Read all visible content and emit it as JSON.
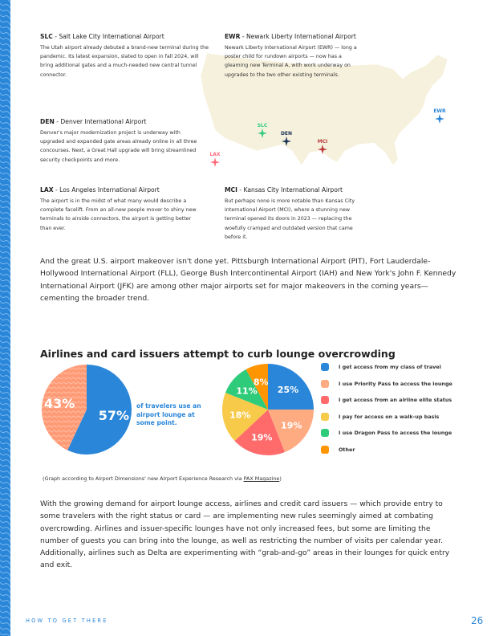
{
  "airports": [
    {
      "code": "SLC",
      "name": " - Salt Lake City International Airport",
      "text": "The Utah airport already debuted a brand-new terminal during the pandemic. Its latest expansion, slated to open in fall 2024, will bring additional gates and a much-needed new central tunnel connector."
    },
    {
      "code": "EWR",
      "name": " - Newark Liberty International Airport",
      "text": "Newark Liberty International Airport (EWR) — long a poster child for rundown airports — now has a gleaming new Terminal A, with work underway on upgrades to the two other existing terminals."
    },
    {
      "code": "DEN",
      "name": " - Denver International Airport",
      "text": "Denver's major modernization project is underway with upgraded and expanded gate areas already online in all three concourses. Next, a Great Hall upgrade will bring streamlined security checkpoints and more."
    },
    {
      "code": "LAX",
      "name": " - Los Angeles International Airport",
      "text": "The airport is in the midst of what many would describe a complete facelift. From an all-new people mover to shiny new terminals to airside connectors, the airport is getting better than ever."
    },
    {
      "code": "MCI",
      "name": " - Kansas City International Airport",
      "text": "But perhaps none is more notable than Kansas City International Airport (MCI), where a stunning new terminal opened its doors in 2023 — replacing the woefully cramped and outdated version that came before it."
    }
  ],
  "map_markers": [
    {
      "label": "SLC",
      "color": "#2ecc7a"
    },
    {
      "label": "DEN",
      "color": "#1d3557"
    },
    {
      "label": "MCI",
      "color": "#b83a3a"
    },
    {
      "label": "LAX",
      "color": "#ff6b7a"
    },
    {
      "label": "EWR",
      "color": "#2a86d8"
    }
  ],
  "intro": "And the great U.S. airport makeover isn't done yet. Pittsburgh International Airport (PIT), Fort Lauderdale-Hollywood International Airport (FLL), George Bush Intercontinental Airport (IAH) and New York's John F. Kennedy International Airport (JFK) are among other major airports set for major makeovers in the coming years—cementing the broader trend.",
  "section_title": "Airlines and card issuers attempt to curb lounge overcrowding",
  "chart_data": [
    {
      "type": "pie",
      "values": [
        57,
        43
      ],
      "labels": [
        "57%",
        "43%"
      ],
      "colors": [
        "#2a86d8",
        "#ff9a76"
      ],
      "caption": "of travelers use an airport lounge at some point."
    },
    {
      "type": "pie",
      "categories": [
        "I get access from my class of travel",
        "I use Priority Pass to access the lounge",
        "I get access from an airline elite status",
        "I pay for access on a walk-up basis",
        "I use Dragon Pass to access the lounge",
        "Other"
      ],
      "values": [
        25,
        19,
        19,
        18,
        11,
        8
      ],
      "labels": [
        "25%",
        "19%",
        "19%",
        "18%",
        "11%",
        "8%"
      ],
      "colors": [
        "#2a86d8",
        "#ffab82",
        "#ff6b6b",
        "#f7ca4a",
        "#2ecc7a",
        "#ff9500"
      ],
      "legend": "right"
    }
  ],
  "note_prefix": "(Graph according to Airport Dimensions' new Airport Experience Research via ",
  "note_link": "PAX Magazine",
  "note_suffix": ")",
  "body": "With the growing demand for airport lounge access, airlines and credit card issuers — which provide entry to some travelers with the right status or card — are implementing new rules seemingly aimed at combating overcrowding. Airlines and issuer-specific lounges have not only increased fees, but some are limiting the number of guests you can bring into the lounge, as well as restricting the number of visits per calendar year. Additionally, airlines such as Delta are experimenting with “grab-and-go” areas in their lounges for quick entry and exit.",
  "footer": {
    "section": "HOW TO GET THERE",
    "page": "26"
  }
}
